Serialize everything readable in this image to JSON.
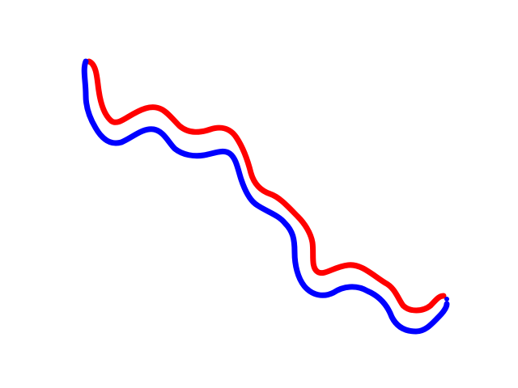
{
  "figure": {
    "background": "#ffffff",
    "paths": [
      {
        "name": "red-path",
        "color": "#ff0000"
      },
      {
        "name": "blue-path",
        "color": "#0000ff"
      }
    ]
  }
}
